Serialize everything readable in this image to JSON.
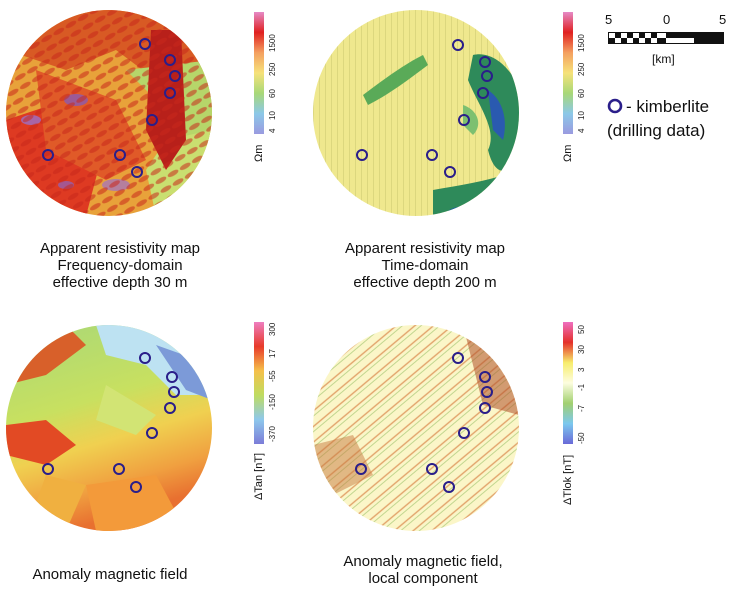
{
  "maps": [
    {
      "caption": [
        "Apparent resistivity map",
        "Frequency-domain",
        "effective depth 30 m"
      ],
      "colorbar": {
        "ticks": [
          "1500",
          "250",
          "60",
          "10",
          "4"
        ],
        "unit": "Ωm",
        "colors": [
          "#e68ac6",
          "#e02020",
          "#f4a060",
          "#f6e27a",
          "#a8d878",
          "#8cc8e8",
          "#9a9ae0"
        ]
      }
    },
    {
      "caption": [
        "Apparent resistivity map",
        "Time-domain",
        "effective depth 200 m"
      ],
      "colorbar": {
        "ticks": [
          "1500",
          "250",
          "60",
          "10",
          "4"
        ],
        "unit": "Ωm",
        "colors": [
          "#e68ac6",
          "#e02020",
          "#f4a060",
          "#f6e27a",
          "#a8d878",
          "#8cc8e8",
          "#9a9ae0"
        ]
      }
    },
    {
      "caption": [
        "Anomaly magnetic field"
      ],
      "colorbar": {
        "ticks": [
          "300",
          "17",
          "-55",
          "-150",
          "-370"
        ],
        "unit": "ΔTan [nT]",
        "colors": [
          "#ee7ec0",
          "#e83a2a",
          "#f5c04a",
          "#bfdc60",
          "#8ec8ec",
          "#7c7cd8"
        ]
      }
    },
    {
      "caption": [
        "Anomaly magnetic field,",
        "local component"
      ],
      "colorbar": {
        "ticks": [
          "50",
          "30",
          "3",
          "-1",
          "-7",
          "-50"
        ],
        "unit": "ΔTlok [nT]",
        "colors": [
          "#ef6fc0",
          "#e4302a",
          "#f7ed6c",
          "#fdfde0",
          "#a2d070",
          "#7cc8ee",
          "#6a6ad8"
        ]
      }
    }
  ],
  "scale_bar": {
    "labels": [
      "5",
      "0",
      "5"
    ],
    "unit": "[km]"
  },
  "legend": {
    "marker_color": "#2a1e8a",
    "line1": "- kimberlite",
    "line2": "(drilling data)"
  }
}
